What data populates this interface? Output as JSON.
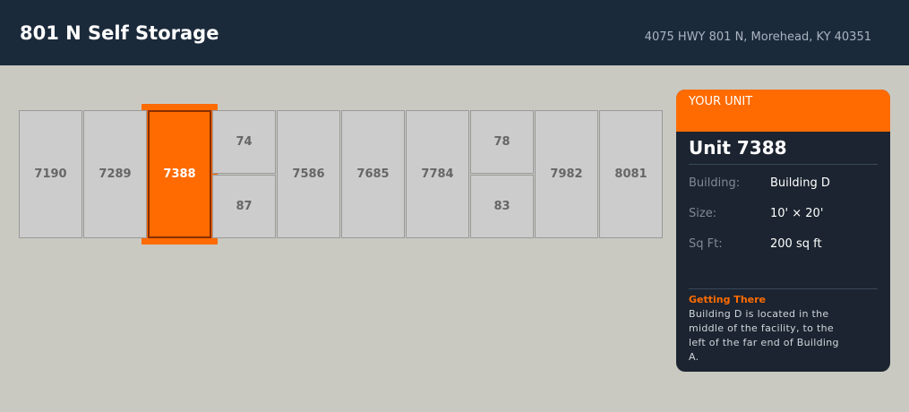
{
  "header": {
    "title": "801 N Self Storage",
    "address": "4075 HWY 801 N, Morehead, KY 40351"
  },
  "units": [
    "7190",
    "7289",
    "7388",
    "74",
    "87",
    "7586",
    "7685",
    "7784",
    "78",
    "83",
    "7982",
    "8081"
  ],
  "selected_unit": "7388",
  "panel": {
    "label": "YOUR UNIT",
    "title": "Unit 7388",
    "rows": [
      {
        "k": "Building:",
        "v": "Building D"
      },
      {
        "k": "Size:",
        "v": "10' × 20'"
      },
      {
        "k": "Sq Ft:",
        "v": "200 sq ft"
      }
    ],
    "getting_there_title": "Getting There",
    "getting_there": "Building D is located in the middle of the facility, to the left of the far end of Building A."
  },
  "colors": {
    "accent": "#ff6b00",
    "header": "#1b2a3b",
    "panel": "#1b2430"
  }
}
